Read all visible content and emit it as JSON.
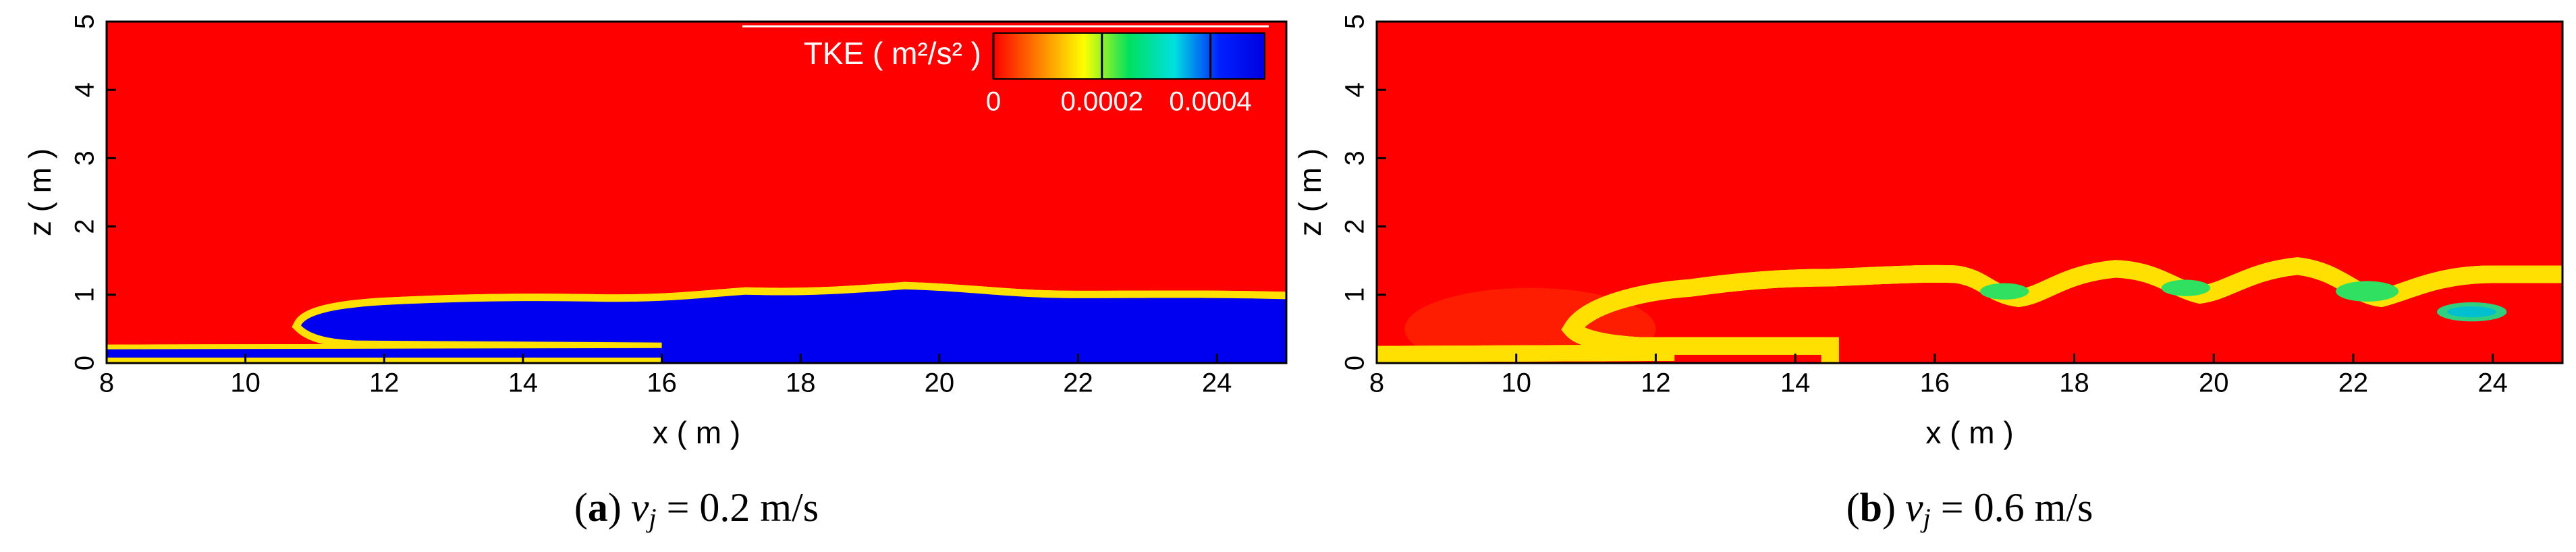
{
  "chart_data": [
    {
      "type": "contour",
      "xlabel": "x ( m )",
      "ylabel": "z ( m )",
      "xlim": [
        8,
        25
      ],
      "xticks": [
        8,
        10,
        12,
        14,
        16,
        18,
        20,
        22,
        24
      ],
      "ylim": [
        0,
        5
      ],
      "yticks": [
        0,
        1,
        2,
        3,
        4,
        5
      ],
      "colorbar": {
        "label": "TKE ( m²/s² )",
        "lim": [
          0,
          0.0005
        ],
        "ticks": [
          0,
          0.0002,
          0.0004
        ],
        "colors": [
          "#ff0000",
          "#ff8000",
          "#ffff00",
          "#00e060",
          "#00e0e0",
          "#0020ff",
          "#0000e0"
        ]
      },
      "caption": [
        {
          "text": "(",
          "style": "normal"
        },
        {
          "text": "a",
          "style": "bold"
        },
        {
          "text": ")",
          "style": "normal"
        },
        {
          "text": "v",
          "style": "italic"
        },
        {
          "text": "j",
          "style": "sub"
        },
        {
          "text": " = 0.2 m/s",
          "style": "normal"
        }
      ]
    },
    {
      "type": "contour",
      "xlabel": "x ( m )",
      "ylabel": "z ( m )",
      "xlim": [
        8,
        25
      ],
      "xticks": [
        8,
        10,
        12,
        14,
        16,
        18,
        20,
        22,
        24
      ],
      "ylim": [
        0,
        5
      ],
      "yticks": [
        0,
        1,
        2,
        3,
        4,
        5
      ],
      "caption": [
        {
          "text": "(",
          "style": "normal"
        },
        {
          "text": "b",
          "style": "bold"
        },
        {
          "text": ")",
          "style": "normal"
        },
        {
          "text": "v",
          "style": "italic"
        },
        {
          "text": "j",
          "style": "sub"
        },
        {
          "text": " = 0.6 m/s",
          "style": "normal"
        }
      ]
    }
  ]
}
